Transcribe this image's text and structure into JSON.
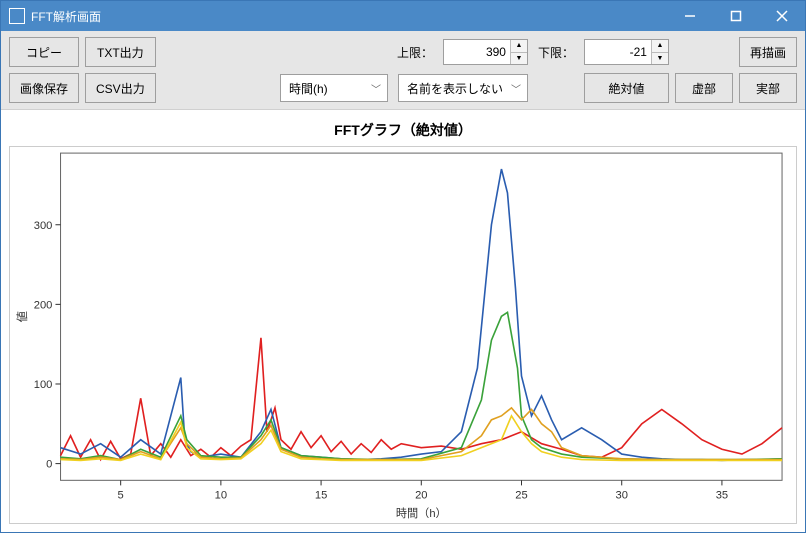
{
  "window": {
    "title": "FFT解析画面"
  },
  "toolbar": {
    "copy": "コピー",
    "txt_out": "TXT出力",
    "img_save": "画像保存",
    "csv_out": "CSV出力",
    "xaxis_select": "時間(h)",
    "name_select": "名前を表示しない",
    "abs_btn": "絶対値",
    "imag_btn": "虚部",
    "real_btn": "実部",
    "upper_label": "上限：",
    "upper_value": "390",
    "lower_label": "下限：",
    "lower_value": "-21",
    "redraw": "再描画"
  },
  "chart": {
    "title": "FFTグラフ（絶対値）",
    "type": "line",
    "xlabel": "時間（h）",
    "ylabel": "値",
    "xlim": [
      2,
      38
    ],
    "ylim": [
      -21,
      390
    ],
    "xticks": [
      5,
      10,
      15,
      20,
      25,
      30,
      35
    ],
    "yticks": [
      0,
      100,
      200,
      300
    ],
    "plot_bg": "#ffffff",
    "border_color": "#666666",
    "tick_fontsize": 11,
    "label_fontsize": 11,
    "title_fontsize": 14,
    "line_width": 1.6,
    "series": [
      {
        "name": "s_red",
        "color": "#e02020",
        "x": [
          2,
          2.5,
          3,
          3.5,
          4,
          4.5,
          5,
          5.5,
          6,
          6.5,
          7,
          7.5,
          8,
          8.5,
          9,
          9.5,
          10,
          10.5,
          11,
          11.5,
          12,
          12.3,
          12.7,
          13,
          13.5,
          14,
          14.5,
          15,
          15.5,
          16,
          16.5,
          17,
          17.5,
          18,
          18.5,
          19,
          20,
          21,
          22,
          23,
          24,
          25,
          26,
          27,
          28,
          29,
          30,
          31,
          32,
          33,
          34,
          35,
          36,
          37,
          38
        ],
        "y": [
          10,
          35,
          8,
          30,
          5,
          28,
          6,
          12,
          82,
          10,
          25,
          8,
          30,
          10,
          18,
          8,
          20,
          10,
          22,
          30,
          158,
          40,
          70,
          30,
          18,
          40,
          20,
          35,
          15,
          28,
          12,
          25,
          14,
          30,
          18,
          25,
          20,
          22,
          18,
          25,
          30,
          40,
          25,
          18,
          10,
          8,
          20,
          50,
          68,
          50,
          30,
          18,
          12,
          25,
          45
        ]
      },
      {
        "name": "s_blue",
        "color": "#2a5db0",
        "x": [
          2,
          3,
          4,
          5,
          6,
          7,
          8,
          8.2,
          8.5,
          9,
          10,
          11,
          12,
          12.5,
          13,
          14,
          15,
          16,
          17,
          18,
          19,
          20,
          21,
          22,
          22.8,
          23.5,
          24,
          24.3,
          24.7,
          25,
          25.5,
          26,
          26.5,
          27,
          28,
          29,
          30,
          31,
          32,
          33,
          34,
          35,
          36,
          37,
          38
        ],
        "y": [
          20,
          12,
          25,
          8,
          30,
          12,
          108,
          30,
          15,
          8,
          12,
          8,
          40,
          68,
          20,
          10,
          8,
          6,
          5,
          6,
          8,
          12,
          15,
          40,
          120,
          300,
          370,
          340,
          220,
          110,
          60,
          85,
          55,
          30,
          45,
          30,
          12,
          8,
          6,
          5,
          5,
          4,
          5,
          5,
          6
        ]
      },
      {
        "name": "s_green",
        "color": "#3aa23a",
        "x": [
          2,
          3,
          4,
          5,
          6,
          7,
          8,
          8.3,
          9,
          10,
          11,
          12,
          12.5,
          13,
          14,
          15,
          16,
          18,
          20,
          22,
          23,
          23.5,
          24,
          24.3,
          24.8,
          25,
          25.5,
          26,
          27,
          28,
          30,
          32,
          34,
          36,
          38
        ],
        "y": [
          8,
          6,
          10,
          5,
          18,
          8,
          60,
          30,
          10,
          8,
          8,
          35,
          55,
          20,
          10,
          8,
          6,
          5,
          6,
          20,
          80,
          155,
          185,
          190,
          120,
          60,
          30,
          20,
          12,
          8,
          6,
          5,
          5,
          5,
          6
        ]
      },
      {
        "name": "s_orange",
        "color": "#e0a020",
        "x": [
          2,
          3,
          4,
          5,
          6,
          7,
          8,
          8.3,
          9,
          10,
          11,
          12,
          12.5,
          13,
          14,
          15,
          16,
          18,
          20,
          22,
          23,
          23.5,
          24,
          24.5,
          25,
          25.5,
          26,
          26.5,
          27,
          28,
          30,
          32,
          34,
          36,
          38
        ],
        "y": [
          6,
          5,
          8,
          5,
          15,
          6,
          45,
          25,
          8,
          6,
          7,
          30,
          48,
          18,
          8,
          6,
          5,
          5,
          5,
          15,
          35,
          55,
          60,
          70,
          55,
          68,
          50,
          40,
          20,
          10,
          6,
          5,
          5,
          5,
          5
        ]
      },
      {
        "name": "s_yellow",
        "color": "#f0d020",
        "x": [
          2,
          3,
          4,
          5,
          6,
          7,
          8,
          8.3,
          9,
          10,
          11,
          12,
          12.5,
          13,
          14,
          15,
          16,
          18,
          20,
          22,
          23,
          24,
          24.5,
          25,
          25.5,
          26,
          27,
          28,
          30,
          32,
          34,
          36,
          38
        ],
        "y": [
          5,
          4,
          6,
          4,
          12,
          5,
          52,
          20,
          6,
          5,
          6,
          25,
          42,
          15,
          6,
          5,
          4,
          4,
          4,
          10,
          20,
          30,
          60,
          40,
          25,
          15,
          8,
          5,
          4,
          4,
          4,
          4,
          4
        ]
      }
    ]
  }
}
